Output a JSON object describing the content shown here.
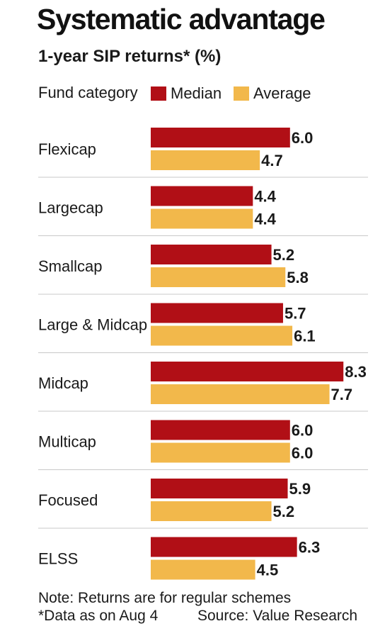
{
  "chart_data": {
    "type": "bar",
    "orientation": "horizontal",
    "title": "Systematic advantage",
    "subtitle": "1-year SIP returns* (%)",
    "category_header": "Fund category",
    "categories": [
      "Flexicap",
      "Largecap",
      "Smallcap",
      "Large & Midcap",
      "Midcap",
      "Multicap",
      "Focused",
      "ELSS"
    ],
    "series": [
      {
        "name": "Median",
        "color": "#b10f16",
        "values": [
          6.0,
          4.4,
          5.2,
          5.7,
          8.3,
          6.0,
          5.9,
          6.3
        ]
      },
      {
        "name": "Average",
        "color": "#f2b84b",
        "values": [
          4.7,
          4.4,
          5.8,
          6.1,
          7.7,
          6.0,
          5.2,
          4.5
        ]
      }
    ],
    "legend_position": "top",
    "grid": false,
    "xlim": [
      0,
      8.3
    ]
  },
  "footer": {
    "note": "Note: Returns are for regular schemes",
    "data_date": "*Data as on Aug 4",
    "source": "Source: Value Research"
  }
}
